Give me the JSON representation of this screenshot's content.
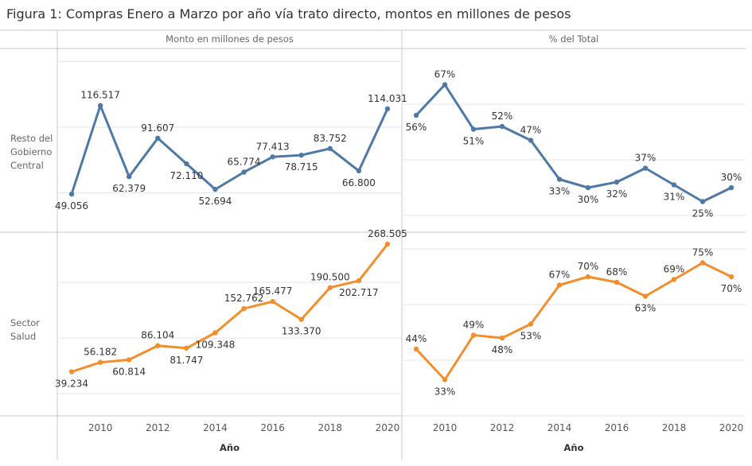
{
  "title": "Figura 1: Compras Enero a Marzo por año vía trato directo, montos en millones de pesos",
  "colors": {
    "resto": "#4e79a7",
    "salud": "#f28e2b",
    "grid": "#e6e6e6",
    "frame": "#c8c8c8"
  },
  "chart_data": {
    "type": "line",
    "columns": [
      "Monto en millones de pesos",
      "% del Total"
    ],
    "rows": [
      {
        "label_lines": [
          "Resto del",
          "Gobierno",
          "Central"
        ],
        "series_key": "resto"
      },
      {
        "label_lines": [
          "Sector",
          "Salud"
        ],
        "series_key": "salud"
      }
    ],
    "x": [
      2009,
      2010,
      2011,
      2012,
      2013,
      2014,
      2015,
      2016,
      2017,
      2018,
      2019,
      2020
    ],
    "x_ticks": [
      "2010",
      "2012",
      "2014",
      "2016",
      "2018",
      "2020"
    ],
    "xlabel": "Año",
    "panels": [
      {
        "row": 0,
        "col": 0,
        "values": [
          49056,
          116517,
          62379,
          91607,
          72110,
          52694,
          65774,
          77413,
          78715,
          83752,
          66800,
          114031
        ],
        "labels": [
          "49.056",
          "116.517",
          "62.379",
          "91.607",
          "72.110",
          "52.694",
          "65.774",
          "77.413",
          "78.715",
          "83.752",
          "66.800",
          "114.031"
        ]
      },
      {
        "row": 0,
        "col": 1,
        "values": [
          56,
          67,
          51,
          52,
          47,
          33,
          30,
          32,
          37,
          31,
          25,
          30
        ],
        "labels": [
          "56%",
          "67%",
          "51%",
          "52%",
          "47%",
          "33%",
          "30%",
          "32%",
          "37%",
          "31%",
          "25%",
          "30%"
        ]
      },
      {
        "row": 1,
        "col": 0,
        "values": [
          39234,
          56182,
          60814,
          86104,
          81747,
          109348,
          152762,
          165477,
          133370,
          190500,
          202717,
          268505
        ],
        "labels": [
          "39.234",
          "56.182",
          "60.814",
          "86.104",
          "81.747",
          "109.348",
          "152.762",
          "165.477",
          "133.370",
          "190.500",
          "202.717",
          "268.505"
        ]
      },
      {
        "row": 1,
        "col": 1,
        "values": [
          44,
          33,
          49,
          48,
          53,
          67,
          70,
          68,
          63,
          69,
          75,
          70
        ],
        "labels": [
          "44%",
          "33%",
          "49%",
          "48%",
          "53%",
          "67%",
          "70%",
          "68%",
          "63%",
          "69%",
          "75%",
          "70%"
        ]
      }
    ]
  }
}
